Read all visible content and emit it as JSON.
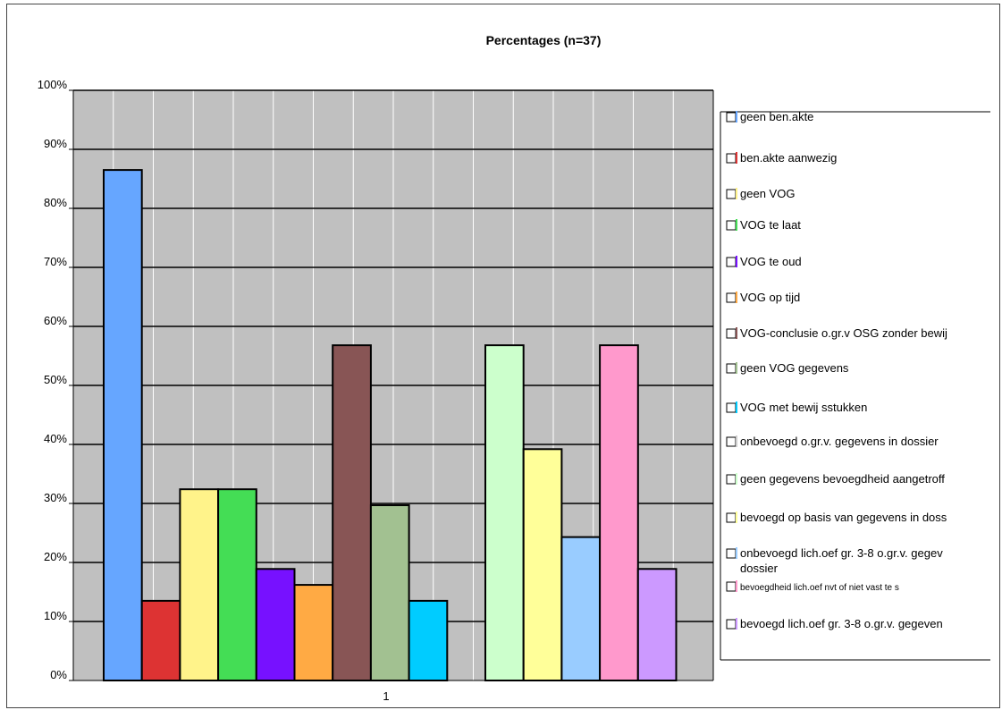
{
  "chart_data": {
    "type": "bar",
    "title": "Percentages (n=37)",
    "categories": [
      "1"
    ],
    "ylim": [
      0,
      100
    ],
    "yticks": [
      "0%",
      "10%",
      "20%",
      "30%",
      "40%",
      "50%",
      "60%",
      "70%",
      "80%",
      "90%",
      "100%"
    ],
    "grid": true,
    "legend_position": "right",
    "series": [
      {
        "name": "geen ben.akte",
        "value": 86.5,
        "color": "#66A6FF"
      },
      {
        "name": "ben.akte aanwezig",
        "value": 13.5,
        "color": "#DD3333"
      },
      {
        "name": "geen VOG",
        "value": 32.4,
        "color": "#FFF38A"
      },
      {
        "name": "VOG te laat",
        "value": 32.4,
        "color": "#44DD55"
      },
      {
        "name": "VOG te oud",
        "value": 18.9,
        "color": "#7711FF"
      },
      {
        "name": "VOG op tijd",
        "value": 16.2,
        "color": "#FFAA44"
      },
      {
        "name": "VOG-conclusie o.gr.v OSG zonder bewij",
        "value": 56.8,
        "color": "#885555"
      },
      {
        "name": "geen VOG gegevens",
        "value": 29.7,
        "color": "#A2C191"
      },
      {
        "name": "VOG met bewij sstukken",
        "value": 13.5,
        "color": "#00CCFF"
      },
      {
        "name": "onbevoegd o.gr.v. gegevens in dossier",
        "value": 0,
        "color": "#CCCCCC"
      },
      {
        "name": "geen gegevens bevoegdheid aangetroff",
        "value": 56.8,
        "color": "#CCFFCC"
      },
      {
        "name": "bevoegd op basis van gegevens in doss",
        "value": 39.2,
        "color": "#FFFF99"
      },
      {
        "name": "onbevoegd lich.oef gr. 3-8 o.gr.v. gegev dossier",
        "value": 24.3,
        "color": "#99CCFF"
      },
      {
        "name": "bevoegdheid lich.oef nvt of niet vast te s",
        "value": 56.8,
        "color": "#FF99CC"
      },
      {
        "name": "bevoegd lich.oef gr. 3-8 o.gr.v. gegeven",
        "value": 18.9,
        "color": "#CC99FF"
      }
    ]
  }
}
